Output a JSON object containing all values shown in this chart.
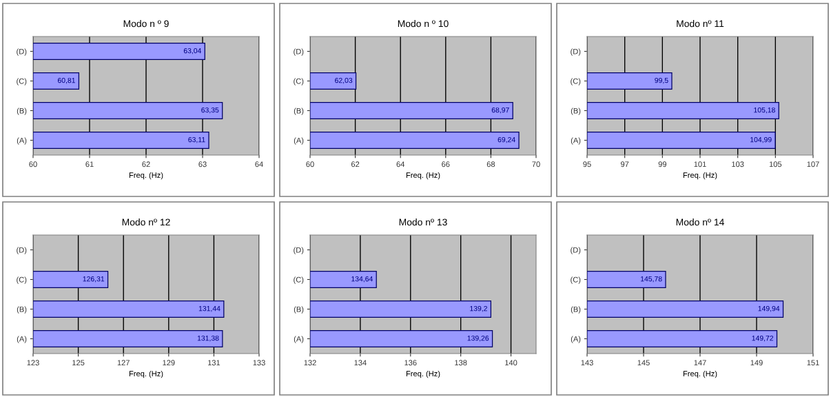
{
  "chart_data": [
    {
      "type": "bar",
      "orientation": "horizontal",
      "title": "Modo n º 9",
      "xlabel": "Freq. (Hz)",
      "categories": [
        "(D)",
        "(C)",
        "(B)",
        "(A)"
      ],
      "values": [
        63.04,
        60.81,
        63.35,
        63.11
      ],
      "value_labels": [
        "63,04",
        "60,81",
        "63,35",
        "63,11"
      ],
      "color": "#9999ff",
      "xlim": [
        60,
        64
      ],
      "xticks": [
        60,
        61,
        62,
        63,
        64
      ],
      "grid": "x"
    },
    {
      "type": "bar",
      "orientation": "horizontal",
      "title": "Modo n º 10",
      "xlabel": "Freq. (Hz)",
      "categories": [
        "(D)",
        "(C)",
        "(B)",
        "(A)"
      ],
      "values": [
        null,
        62.03,
        68.97,
        69.24
      ],
      "value_labels": [
        null,
        "62,03",
        "68,97",
        "69,24"
      ],
      "color": "#9999ff",
      "xlim": [
        60,
        70
      ],
      "xticks": [
        60,
        62,
        64,
        66,
        68,
        70
      ],
      "grid": "x"
    },
    {
      "type": "bar",
      "orientation": "horizontal",
      "title": "Modo nº 11",
      "xlabel": "Freq. (Hz)",
      "categories": [
        "(D)",
        "(C)",
        "(B)",
        "(A)"
      ],
      "values": [
        null,
        99.5,
        105.18,
        104.99
      ],
      "value_labels": [
        null,
        "99,5",
        "105,18",
        "104,99"
      ],
      "color": "#9999ff",
      "xlim": [
        95,
        107
      ],
      "xticks": [
        95,
        97,
        99,
        101,
        103,
        105,
        107
      ],
      "grid": "x"
    },
    {
      "type": "bar",
      "orientation": "horizontal",
      "title": "Modo nº 12",
      "xlabel": "Freq. (Hz)",
      "categories": [
        "(D)",
        "(C)",
        "(B)",
        "(A)"
      ],
      "values": [
        null,
        126.31,
        131.44,
        131.38
      ],
      "value_labels": [
        null,
        "126,31",
        "131,44",
        "131,38"
      ],
      "color": "#9999ff",
      "xlim": [
        123,
        133
      ],
      "xticks": [
        123,
        125,
        127,
        129,
        131,
        133
      ],
      "grid": "x"
    },
    {
      "type": "bar",
      "orientation": "horizontal",
      "title": "Modo nº 13",
      "xlabel": "Freq. (Hz)",
      "categories": [
        "(D)",
        "(C)",
        "(B)",
        "(A)"
      ],
      "values": [
        null,
        134.64,
        139.2,
        139.26
      ],
      "value_labels": [
        null,
        "134,64",
        "139,2",
        "139,26"
      ],
      "color": "#9999ff",
      "xlim": [
        132,
        141
      ],
      "xticks": [
        132,
        134,
        136,
        138,
        140
      ],
      "grid": "x"
    },
    {
      "type": "bar",
      "orientation": "horizontal",
      "title": "Modo nº 14",
      "xlabel": "Freq. (Hz)",
      "categories": [
        "(D)",
        "(C)",
        "(B)",
        "(A)"
      ],
      "values": [
        null,
        145.78,
        149.94,
        149.72
      ],
      "value_labels": [
        null,
        "145,78",
        "149,94",
        "149,72"
      ],
      "color": "#9999ff",
      "xlim": [
        143,
        151
      ],
      "xticks": [
        143,
        145,
        147,
        149,
        151
      ],
      "grid": "x"
    }
  ]
}
